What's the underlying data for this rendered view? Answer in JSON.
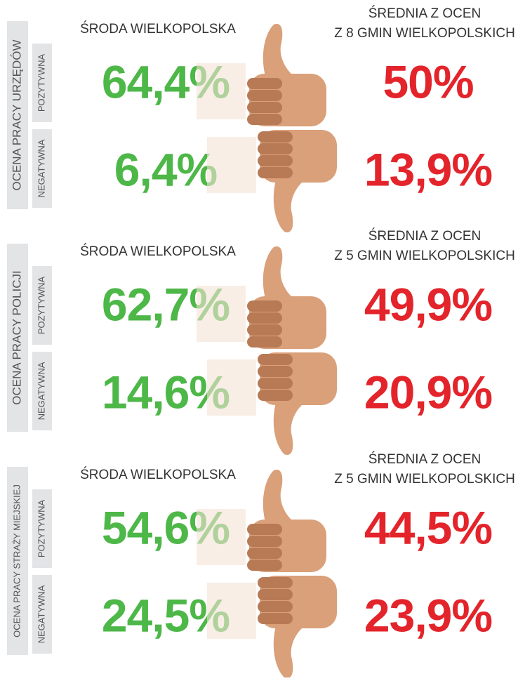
{
  "sections": [
    {
      "label": "OCENA PRACY URZĘDÓW",
      "left_header": "ŚRODA WIELKOPOLSKA",
      "right_header": [
        "ŚREDNIA Z OCEN",
        "Z 8 GMIN WIELKOPOLSKICH"
      ],
      "rows": [
        {
          "label": "POZYTYWNA",
          "left": "64,4%",
          "right": "50%"
        },
        {
          "label": "NEGATYWNA",
          "left": "6,4%",
          "right": "13,9%"
        }
      ]
    },
    {
      "label": "OCENA PRACY POLICJI",
      "left_header": "ŚRODA WIELKOPOLSKA",
      "right_header": [
        "ŚREDNIA Z OCEN",
        "Z 5 GMIN WIELKOPOLSKICH"
      ],
      "rows": [
        {
          "label": "POZYTYWNA",
          "left": "62,7%",
          "right": "49,9%"
        },
        {
          "label": "NEGATYWNA",
          "left": "14,6%",
          "right": "20,9%"
        }
      ]
    },
    {
      "label": "OCENA PRACY STRAŻY MIEJSKIEJ",
      "left_header": "ŚRODA WIELKOPOLSKA",
      "right_header": [
        "ŚREDNIA Z OCEN",
        "Z 5 GMIN WIELKOPOLSKICH"
      ],
      "rows": [
        {
          "label": "POZYTYWNA",
          "left": "54,6%",
          "right": "44,5%"
        },
        {
          "label": "NEGATYWNA",
          "left": "24,5%",
          "right": "23,9%"
        }
      ]
    }
  ]
}
